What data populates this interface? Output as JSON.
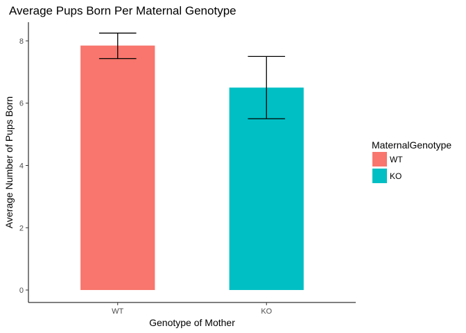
{
  "chart_data": {
    "type": "bar",
    "title": "Average Pups Born Per Maternal Genotype",
    "xlabel": "Genotype of Mother",
    "ylabel": "Average Number of Pups Born",
    "categories": [
      "WT",
      "KO"
    ],
    "values": [
      7.85,
      6.5
    ],
    "error_low": [
      7.43,
      5.5
    ],
    "error_high": [
      8.25,
      7.5
    ],
    "colors": [
      "#F8766D",
      "#00BFC4"
    ],
    "ylim": [
      -0.4,
      8.6
    ],
    "yticks": [
      0,
      2,
      4,
      6,
      8
    ],
    "grid": false,
    "legend": {
      "title": "MaternalGenotype",
      "position": "right",
      "entries": [
        "WT",
        "KO"
      ]
    }
  }
}
